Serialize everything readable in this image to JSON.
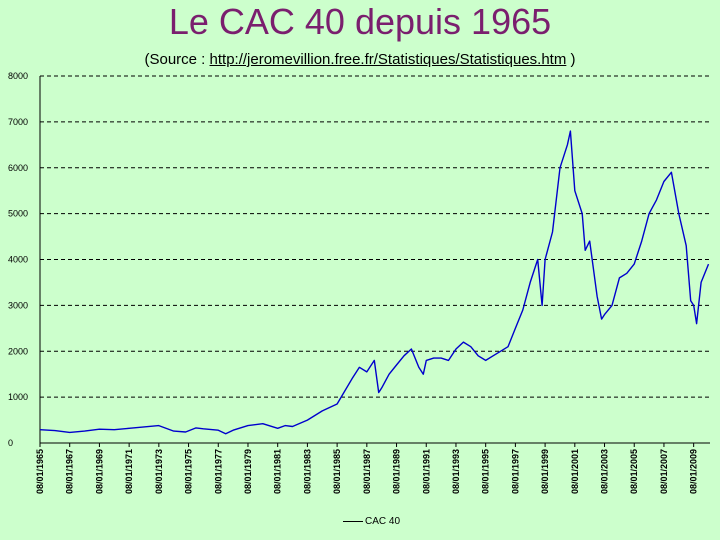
{
  "header": {
    "title": "Le CAC 40 depuis 1965",
    "subtitle_prefix": "(Source : ",
    "subtitle_link": "http://jeromevillion.free.fr/Statistiques/Statistiques.htm",
    "subtitle_suffix": " )"
  },
  "colors": {
    "background": "#ccffcc",
    "title": "#7a1f6e",
    "series": "#0000cc",
    "grid": "#000000"
  },
  "chart_data": {
    "type": "line",
    "title": "Le CAC 40 depuis 1965",
    "xlabel": "",
    "ylabel": "",
    "ylim": [
      0,
      8000
    ],
    "y_ticks": [
      0,
      1000,
      2000,
      3000,
      4000,
      5000,
      6000,
      7000,
      8000
    ],
    "x_tick_labels": [
      "08/01/1965",
      "08/01/1967",
      "08/01/1969",
      "08/01/1971",
      "08/01/1973",
      "08/01/1975",
      "08/01/1977",
      "08/01/1979",
      "08/01/1981",
      "08/01/1983",
      "08/01/1985",
      "08/01/1987",
      "08/01/1989",
      "08/01/1991",
      "08/01/1993",
      "08/01/1995",
      "08/01/1997",
      "08/01/1999",
      "08/01/2001",
      "08/01/2003",
      "08/01/2005",
      "08/01/2007",
      "08/01/2009"
    ],
    "xlim": [
      1965.0,
      2010.1
    ],
    "grid": "horizontal dashed",
    "legend": "bottom-center",
    "series": [
      {
        "name": "CAC 40",
        "x": [
          1965.0,
          1966.0,
          1967.0,
          1968.0,
          1969.0,
          1970.0,
          1971.0,
          1972.0,
          1973.0,
          1974.0,
          1974.8,
          1975.5,
          1976.0,
          1977.0,
          1977.5,
          1978.0,
          1979.0,
          1980.0,
          1981.0,
          1981.5,
          1982.0,
          1983.0,
          1984.0,
          1985.0,
          1986.0,
          1986.5,
          1987.0,
          1987.5,
          1987.8,
          1988.0,
          1988.5,
          1989.0,
          1989.5,
          1990.0,
          1990.5,
          1990.8,
          1991.0,
          1991.5,
          1992.0,
          1992.5,
          1993.0,
          1993.5,
          1994.0,
          1994.5,
          1995.0,
          1995.5,
          1996.0,
          1996.5,
          1997.0,
          1997.5,
          1998.0,
          1998.5,
          1998.8,
          1999.0,
          1999.5,
          2000.0,
          2000.5,
          2000.7,
          2001.0,
          2001.5,
          2001.7,
          2002.0,
          2002.5,
          2002.8,
          2003.0,
          2003.5,
          2004.0,
          2004.5,
          2005.0,
          2005.5,
          2006.0,
          2006.5,
          2007.0,
          2007.5,
          2008.0,
          2008.5,
          2008.8,
          2009.0,
          2009.2,
          2009.5,
          2010.0
        ],
        "y": [
          290,
          270,
          230,
          260,
          300,
          290,
          320,
          350,
          380,
          260,
          240,
          330,
          310,
          280,
          200,
          280,
          380,
          420,
          320,
          380,
          360,
          500,
          700,
          850,
          1400,
          1650,
          1550,
          1800,
          1100,
          1200,
          1500,
          1700,
          1900,
          2050,
          1650,
          1500,
          1800,
          1850,
          1850,
          1800,
          2050,
          2200,
          2100,
          1900,
          1800,
          1900,
          2000,
          2100,
          2500,
          2900,
          3500,
          4000,
          3000,
          4000,
          4600,
          6000,
          6500,
          6800,
          5500,
          5000,
          4200,
          4400,
          3200,
          2700,
          2800,
          3000,
          3600,
          3700,
          3900,
          4400,
          5000,
          5300,
          5700,
          5900,
          5000,
          4300,
          3100,
          3000,
          2600,
          3500,
          3900
        ]
      }
    ]
  },
  "legend": {
    "label": "CAC 40"
  }
}
